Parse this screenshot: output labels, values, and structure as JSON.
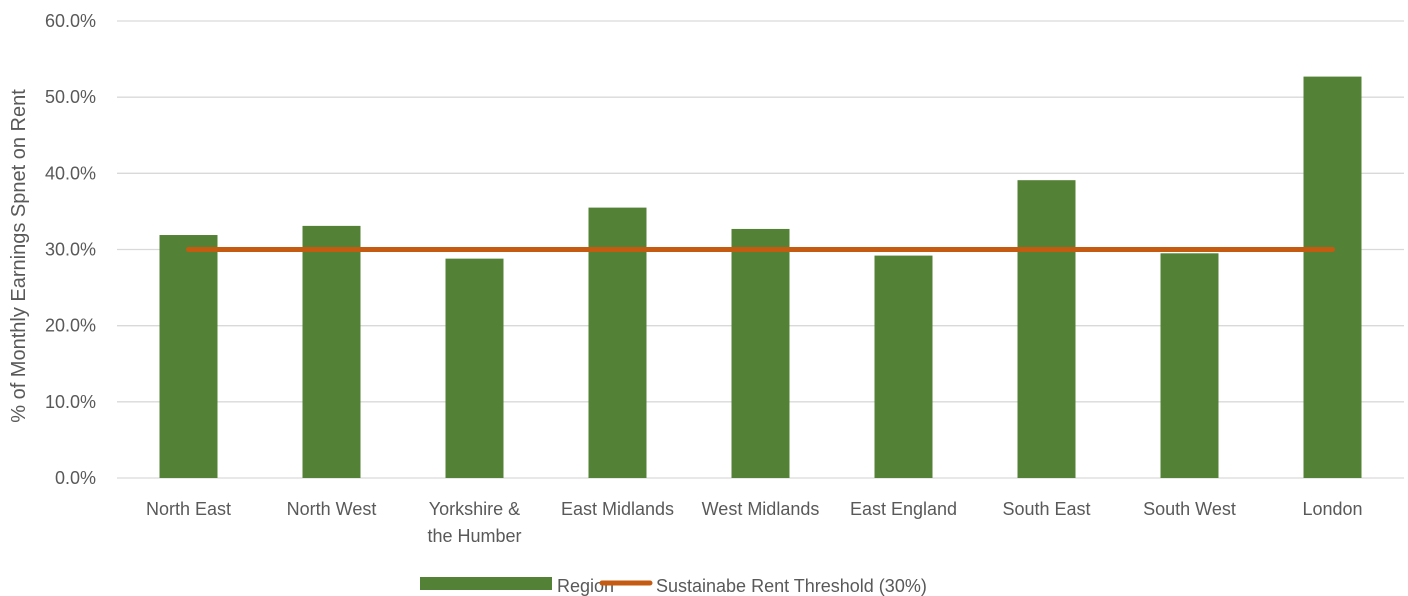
{
  "chart_data": {
    "type": "bar",
    "categories": [
      "North East",
      "North West",
      "Yorkshire & the Humber",
      "East Midlands",
      "West Midlands",
      "East England",
      "South East",
      "South West",
      "London"
    ],
    "series": [
      {
        "name": "Region",
        "type": "bar",
        "color": "#538135",
        "values": [
          31.9,
          33.1,
          28.8,
          35.5,
          32.7,
          29.2,
          39.1,
          29.5,
          52.7
        ]
      },
      {
        "name": "Sustainabe Rent Threshold (30%)",
        "type": "line",
        "color": "#C55A11",
        "values": [
          30,
          30,
          30,
          30,
          30,
          30,
          30,
          30,
          30
        ]
      }
    ],
    "ylabel": "% of Monthly Earnings Spnet on Rent",
    "ylim": [
      0,
      60
    ],
    "yticks": [
      "0.0%",
      "10.0%",
      "20.0%",
      "30.0%",
      "40.0%",
      "50.0%",
      "60.0%"
    ],
    "grid": true,
    "legend": "bottom"
  }
}
